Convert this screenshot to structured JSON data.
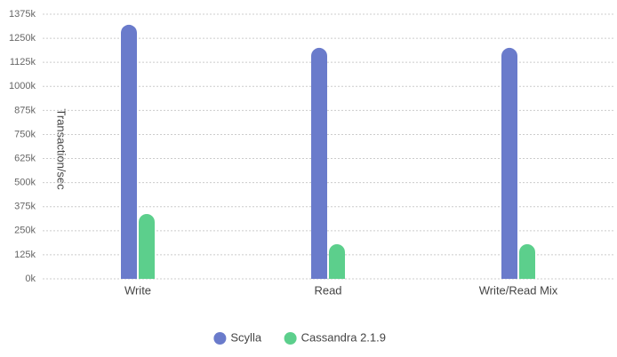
{
  "chart_data": {
    "type": "bar",
    "y_label": "Transaction/sec",
    "categories": [
      "Write",
      "Read",
      "Write/Read Mix"
    ],
    "series": [
      {
        "name": "Scylla",
        "color": "#6a7bcb",
        "values": [
          1320000,
          1200000,
          1200000
        ]
      },
      {
        "name": "Cassandra 2.1.9",
        "color": "#5ccf8c",
        "values": [
          337000,
          180000,
          180000
        ]
      }
    ],
    "ylim": [
      0,
      1375000
    ],
    "yticks": [
      {
        "value": 0,
        "label": "0k"
      },
      {
        "value": 125000,
        "label": "125k"
      },
      {
        "value": 250000,
        "label": "250k"
      },
      {
        "value": 375000,
        "label": "375k"
      },
      {
        "value": 500000,
        "label": "500k"
      },
      {
        "value": 625000,
        "label": "625k"
      },
      {
        "value": 750000,
        "label": "750k"
      },
      {
        "value": 875000,
        "label": "875k"
      },
      {
        "value": 1000000,
        "label": "1000k"
      },
      {
        "value": 1125000,
        "label": "1125k"
      },
      {
        "value": 1250000,
        "label": "1250k"
      },
      {
        "value": 1375000,
        "label": "1375k"
      }
    ],
    "grid": true,
    "legend": "bottom"
  }
}
